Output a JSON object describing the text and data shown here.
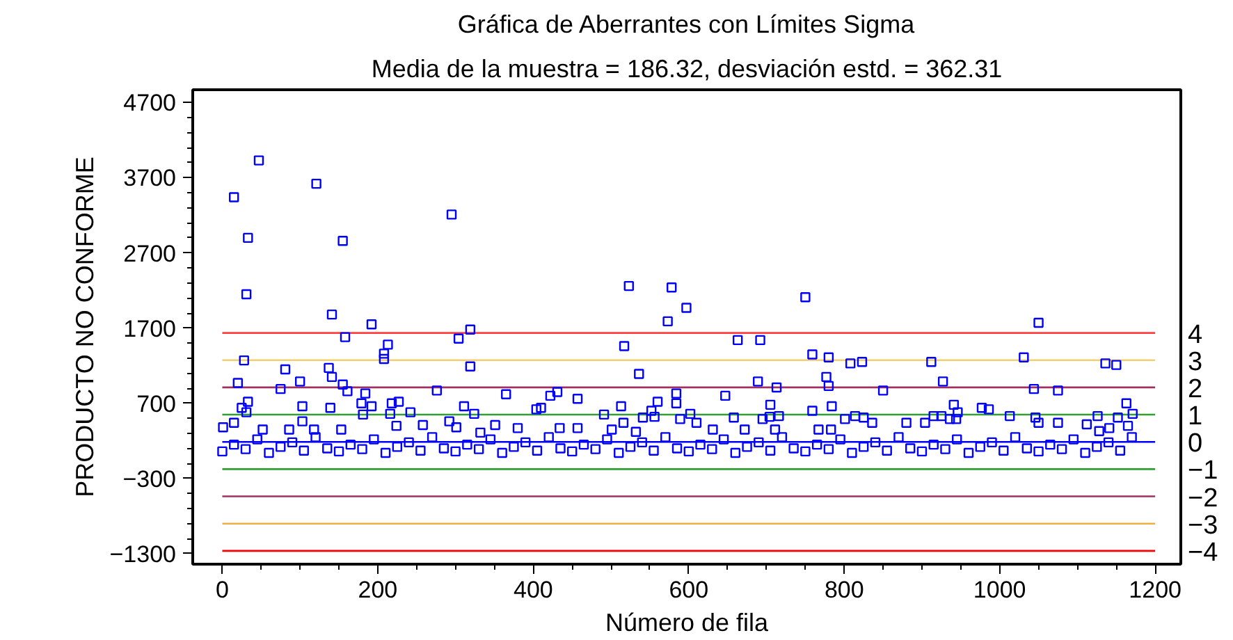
{
  "chart_data": {
    "type": "scatter",
    "title": "Gráfica de Aberrantes con Límites Sigma",
    "subtitle": "Media de la muestra = 186.32, desviación estd. = 362.31",
    "xlabel": "Número de fila",
    "ylabel": "PRODUCTO NO CONFORME",
    "xlim": [
      -38,
      1233
    ],
    "ylim": [
      -1440,
      4870
    ],
    "xticks": [
      0,
      200,
      400,
      600,
      800,
      1000,
      1200
    ],
    "yticks": [
      -1300,
      -300,
      700,
      1700,
      2700,
      3700,
      4700
    ],
    "y2lim": [
      -4.489,
      12.927
    ],
    "y2ticks": [
      -4,
      -3,
      -2,
      -1,
      0,
      1,
      2,
      3,
      4
    ],
    "grid": false,
    "marker": "square",
    "series": [
      {
        "color": "#0000ff",
        "x": [
          47,
          15,
          121,
          33,
          155,
          295,
          31,
          141,
          192,
          158,
          213,
          208,
          208,
          304,
          319,
          319,
          28,
          81,
          137,
          141,
          20,
          100,
          75,
          155,
          161,
          276,
          365,
          184,
          179,
          192,
          218,
          227,
          33,
          25,
          31,
          103,
          139,
          311,
          181,
          216,
          242,
          324,
          15,
          103,
          292,
          1,
          52,
          86,
          118,
          153,
          258,
          301,
          351,
          332,
          224,
          523,
          578,
          597,
          573,
          750,
          517,
          663,
          692,
          759,
          780,
          536,
          689,
          713,
          777,
          780,
          422,
          431,
          457,
          584,
          584,
          647,
          404,
          410,
          513,
          560,
          491,
          552,
          556,
          541,
          602,
          705,
          759,
          784,
          716,
          704,
          695,
          658,
          589,
          516,
          610,
          457,
          434,
          380,
          501,
          532,
          631,
          672,
          711,
          767,
          783,
          1050,
          1031,
          808,
          823,
          912,
          1136,
          1150,
          927,
          850,
          1044,
          1075,
          941,
          946,
          977,
          986,
          1163,
          1171,
          1013,
          1046,
          1050,
          801,
          814,
          825,
          836,
          880,
          904,
          915,
          925,
          936,
          944,
          1075,
          1112,
          1126,
          1152,
          1128,
          1141,
          1165,
          0,
          15,
          30,
          45,
          60,
          75,
          90,
          105,
          120,
          135,
          150,
          165,
          180,
          195,
          210,
          225,
          240,
          255,
          270,
          285,
          300,
          315,
          330,
          345,
          360,
          375,
          390,
          405,
          420,
          435,
          450,
          465,
          480,
          495,
          510,
          525,
          540,
          555,
          570,
          585,
          600,
          615,
          630,
          645,
          660,
          675,
          690,
          705,
          720,
          735,
          750,
          765,
          780,
          795,
          810,
          825,
          840,
          855,
          870,
          885,
          900,
          915,
          930,
          945,
          960,
          975,
          990,
          1005,
          1020,
          1035,
          1050,
          1065,
          1080,
          1095,
          1110,
          1125,
          1140,
          1155,
          1170
        ],
        "values": [
          3930,
          3440,
          3620,
          2900,
          2860,
          3210,
          2150,
          1880,
          1750,
          1580,
          1480,
          1360,
          1290,
          1560,
          1680,
          1190,
          1270,
          1150,
          1170,
          1050,
          970,
          990,
          890,
          950,
          860,
          870,
          820,
          830,
          700,
          660,
          700,
          720,
          720,
          640,
          580,
          660,
          640,
          660,
          550,
          560,
          580,
          560,
          440,
          460,
          460,
          380,
          350,
          350,
          350,
          350,
          410,
          380,
          410,
          310,
          400,
          2260,
          2240,
          1970,
          1790,
          2110,
          1460,
          1540,
          1540,
          1350,
          1310,
          1090,
          990,
          910,
          1050,
          930,
          800,
          850,
          760,
          830,
          700,
          800,
          620,
          640,
          660,
          720,
          550,
          600,
          520,
          510,
          560,
          680,
          600,
          660,
          530,
          520,
          490,
          510,
          490,
          440,
          440,
          370,
          370,
          370,
          350,
          320,
          350,
          350,
          350,
          350,
          350,
          1770,
          1310,
          1230,
          1250,
          1250,
          1230,
          1210,
          990,
          870,
          890,
          870,
          680,
          580,
          640,
          620,
          700,
          560,
          530,
          510,
          440,
          490,
          530,
          510,
          440,
          440,
          440,
          530,
          530,
          490,
          490,
          440,
          420,
          530,
          510,
          330,
          370,
          400,
          60,
          150,
          90,
          220,
          40,
          120,
          180,
          70,
          250,
          100,
          60,
          150,
          90,
          220,
          40,
          120,
          180,
          70,
          250,
          100,
          60,
          150,
          90,
          220,
          40,
          120,
          180,
          70,
          250,
          100,
          60,
          150,
          90,
          220,
          40,
          120,
          180,
          70,
          250,
          100,
          60,
          150,
          90,
          220,
          40,
          120,
          180,
          70,
          250,
          100,
          60,
          150,
          90,
          220,
          40,
          120,
          180,
          70,
          250,
          100,
          60,
          150,
          90,
          220,
          40,
          120,
          180,
          70,
          250,
          100,
          60,
          150,
          90,
          220,
          40,
          120,
          180,
          70,
          250
        ]
      }
    ],
    "ref_lines": [
      {
        "axis": "y2",
        "value": 4,
        "color": "#ff4040"
      },
      {
        "axis": "y2",
        "value": 3,
        "color": "#f0d070"
      },
      {
        "axis": "y2",
        "value": 2,
        "color": "#a03060"
      },
      {
        "axis": "y2",
        "value": 1,
        "color": "#30a030"
      },
      {
        "axis": "y2",
        "value": 0,
        "color": "#0000ff"
      },
      {
        "axis": "y2",
        "value": -1,
        "color": "#30a030"
      },
      {
        "axis": "y2",
        "value": -2,
        "color": "#a03060"
      },
      {
        "axis": "y2",
        "value": -3,
        "color": "#f0b040"
      },
      {
        "axis": "y2",
        "value": -4,
        "color": "#ff0000"
      }
    ]
  }
}
